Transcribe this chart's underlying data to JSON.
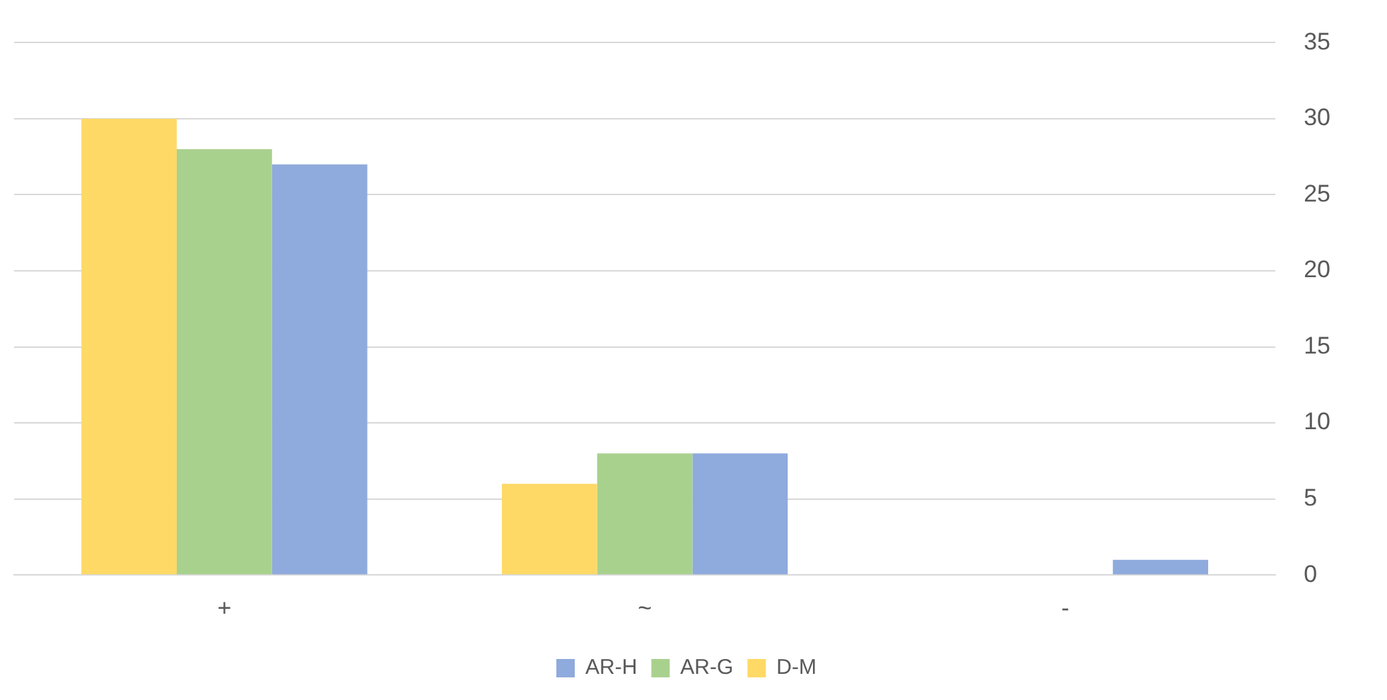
{
  "chart_data": {
    "type": "bar",
    "categories": [
      "+",
      "~",
      "-"
    ],
    "series": [
      {
        "name": "D-M",
        "color": "#ffd966",
        "values": [
          30,
          6,
          0
        ]
      },
      {
        "name": "AR-G",
        "color": "#a9d18e",
        "values": [
          28,
          8,
          0
        ]
      },
      {
        "name": "AR-H",
        "color": "#8faadc",
        "values": [
          27,
          8,
          1
        ]
      }
    ],
    "ylim": [
      0,
      35
    ],
    "yticks": [
      0,
      5,
      10,
      15,
      20,
      25,
      30,
      35
    ],
    "grid": "y",
    "legend": "bottom"
  }
}
